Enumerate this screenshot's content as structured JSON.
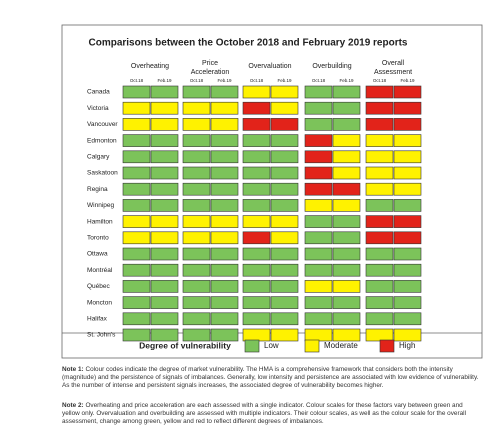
{
  "title": "Comparisons between the October 2018 and February 2019 reports",
  "groups": [
    "Overheating",
    "Price Acceleration",
    "Overvaluation",
    "Overbuilding",
    "Overall Assessment"
  ],
  "periods": [
    "Oct.18",
    "Feb.19"
  ],
  "legend": {
    "title": "Degree of vulnerability",
    "items": [
      {
        "label": "Low",
        "color": "#7cc35a"
      },
      {
        "label": "Moderate",
        "color": "#fff200"
      },
      {
        "label": "High",
        "color": "#e2231a"
      }
    ]
  },
  "rows": [
    {
      "city": "Canada",
      "levels": [
        0,
        0,
        0,
        0,
        1,
        1,
        0,
        0,
        2,
        2
      ]
    },
    {
      "city": "Victoria",
      "levels": [
        1,
        1,
        1,
        1,
        2,
        1,
        0,
        0,
        2,
        2
      ]
    },
    {
      "city": "Vancouver",
      "levels": [
        1,
        1,
        1,
        1,
        2,
        2,
        0,
        0,
        2,
        2
      ]
    },
    {
      "city": "Edmonton",
      "levels": [
        0,
        0,
        0,
        0,
        0,
        0,
        2,
        1,
        1,
        1
      ]
    },
    {
      "city": "Calgary",
      "levels": [
        0,
        0,
        0,
        0,
        0,
        0,
        2,
        1,
        1,
        1
      ]
    },
    {
      "city": "Saskatoon",
      "levels": [
        0,
        0,
        0,
        0,
        0,
        0,
        2,
        1,
        1,
        1
      ]
    },
    {
      "city": "Regina",
      "levels": [
        0,
        0,
        0,
        0,
        0,
        0,
        2,
        2,
        1,
        1
      ]
    },
    {
      "city": "Winnipeg",
      "levels": [
        0,
        0,
        0,
        0,
        0,
        0,
        1,
        1,
        0,
        0
      ]
    },
    {
      "city": "Hamilton",
      "levels": [
        1,
        1,
        1,
        1,
        1,
        1,
        0,
        0,
        2,
        2
      ]
    },
    {
      "city": "Toronto",
      "levels": [
        1,
        1,
        1,
        1,
        2,
        1,
        0,
        0,
        2,
        2
      ]
    },
    {
      "city": "Ottawa",
      "levels": [
        0,
        0,
        0,
        0,
        0,
        0,
        0,
        0,
        0,
        0
      ]
    },
    {
      "city": "Montréal",
      "levels": [
        0,
        0,
        0,
        0,
        0,
        0,
        0,
        0,
        0,
        0
      ]
    },
    {
      "city": "Québec",
      "levels": [
        0,
        0,
        0,
        0,
        0,
        0,
        1,
        1,
        0,
        0
      ]
    },
    {
      "city": "Moncton",
      "levels": [
        0,
        0,
        0,
        0,
        0,
        0,
        0,
        0,
        0,
        0
      ]
    },
    {
      "city": "Halifax",
      "levels": [
        0,
        0,
        0,
        0,
        0,
        0,
        0,
        0,
        0,
        0
      ]
    },
    {
      "city": "St. John's",
      "levels": [
        0,
        0,
        0,
        0,
        1,
        1,
        1,
        1,
        1,
        1
      ]
    }
  ],
  "notes": [
    {
      "label": "Note 1:",
      "text": "Colour codes indicate the degree of market vulnerability. The HMA is a comprehensive framework that considers both the intensity (magnitude) and the persistence of signals of imbalances. Generally, low intensity and persistence are associated with low evidence of vulnerability. As the number of intense and persistent signals increases, the associated degree of vulnerability becomes higher."
    },
    {
      "label": "Note 2:",
      "text": "Overheating and price acceleration are each assessed with a single indicator. Colour scales for these factors vary between green and yellow only. Overvaluation and overbuilding are assessed with multiple indicators. Their colour scales, as well as the colour scale for the overall assessment, change among green, yellow and red to reflect different degrees of imbalances."
    }
  ]
}
